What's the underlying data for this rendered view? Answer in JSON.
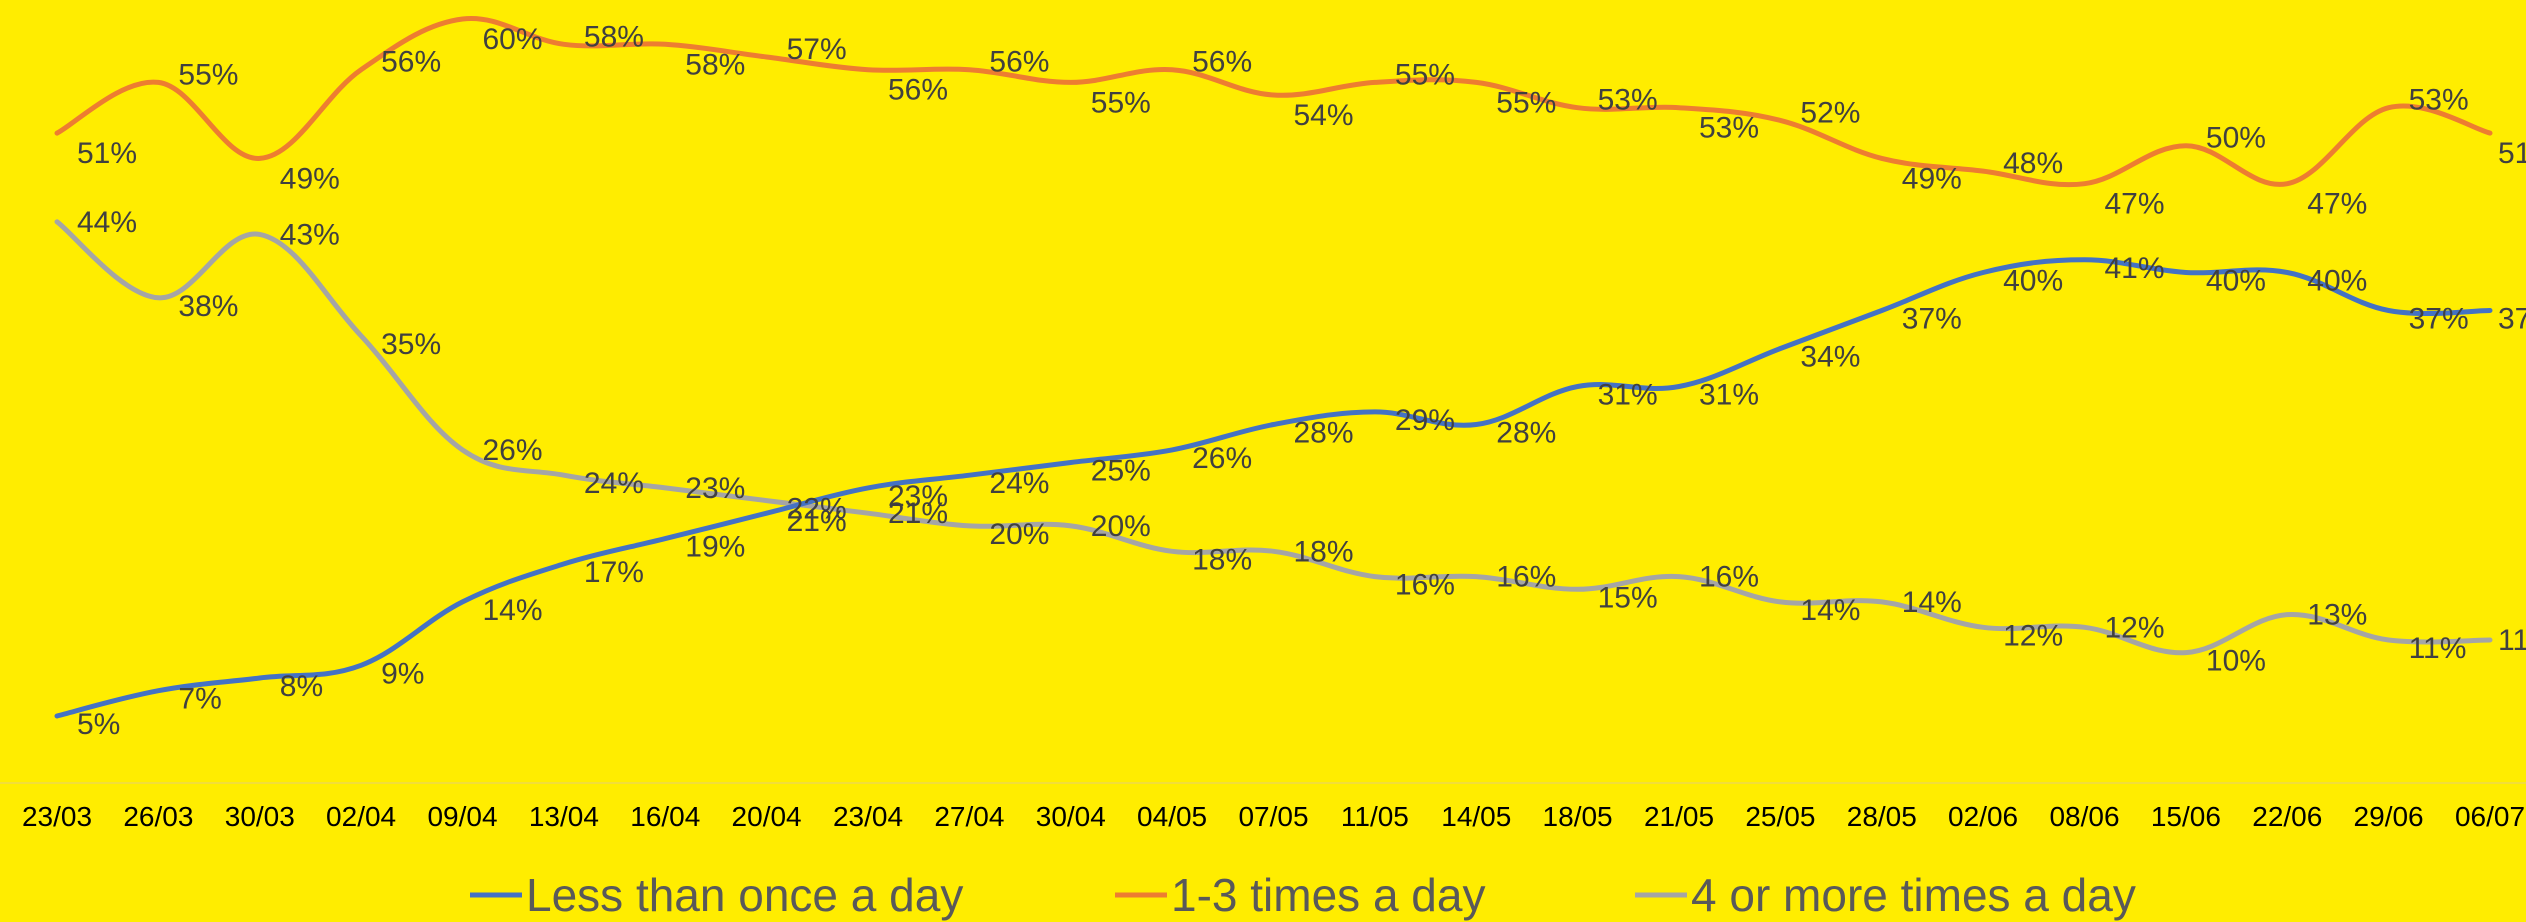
{
  "chart_data": {
    "type": "line",
    "title": "",
    "xlabel": "",
    "ylabel": "",
    "categories": [
      "23/03",
      "26/03",
      "30/03",
      "02/04",
      "09/04",
      "13/04",
      "16/04",
      "20/04",
      "23/04",
      "27/04",
      "30/04",
      "04/05",
      "07/05",
      "11/05",
      "14/05",
      "18/05",
      "21/05",
      "25/05",
      "28/05",
      "02/06",
      "08/06",
      "15/06",
      "22/06",
      "29/06",
      "06/07"
    ],
    "ylim": [
      0,
      62
    ],
    "grid": false,
    "legend_position": "bottom",
    "series": [
      {
        "name": "Less than once a day",
        "color": "#4472C4",
        "values": [
          5,
          7,
          8,
          9,
          14,
          17,
          19,
          21,
          23,
          24,
          25,
          26,
          28,
          29,
          28,
          31,
          31,
          34,
          37,
          40,
          41,
          40,
          40,
          37,
          37
        ]
      },
      {
        "name": "1-3 times a day",
        "color": "#ED7D31",
        "values": [
          51,
          55,
          49,
          56,
          60,
          58,
          58,
          57,
          56,
          56,
          55,
          56,
          54,
          55,
          55,
          53,
          53,
          52,
          49,
          48,
          47,
          50,
          47,
          53,
          51
        ]
      },
      {
        "name": "4 or more times a day",
        "color": "#A5A5A5",
        "values": [
          44,
          38,
          43,
          35,
          26,
          24,
          23,
          22,
          21,
          20,
          20,
          18,
          18,
          16,
          16,
          15,
          16,
          14,
          14,
          12,
          12,
          10,
          13,
          11,
          11
        ]
      }
    ]
  }
}
